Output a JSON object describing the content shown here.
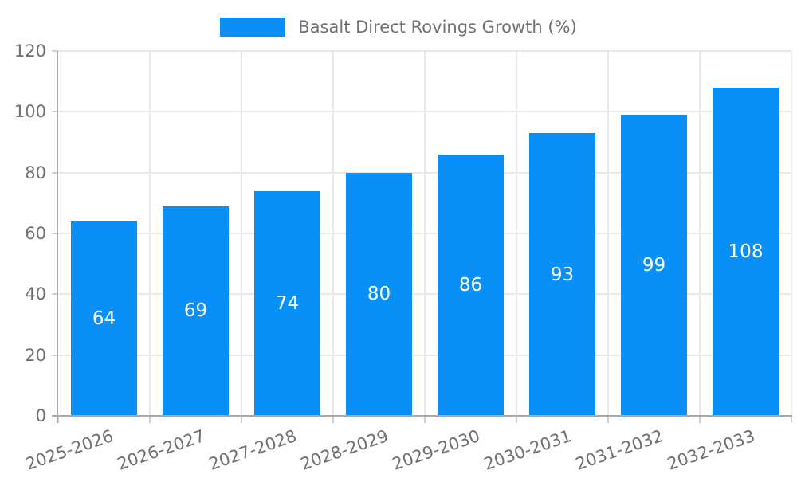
{
  "chart_data": {
    "type": "bar",
    "title": "Basalt Direct Rovings Growth (%)",
    "legend": [
      "Basalt Direct Rovings Growth (%)"
    ],
    "legend_position": "top-center",
    "categories": [
      "2025-2026",
      "2026-2027",
      "2027-2028",
      "2028-2029",
      "2029-2030",
      "2030-2031",
      "2031-2032",
      "2032-2033"
    ],
    "series": [
      {
        "name": "Basalt Direct Rovings Growth (%)",
        "values": [
          64,
          69,
          74,
          80,
          86,
          93,
          99,
          108
        ]
      }
    ],
    "values": [
      64,
      69,
      74,
      80,
      86,
      93,
      99,
      108
    ],
    "value_labels": [
      "64",
      "69",
      "74",
      "80",
      "86",
      "93",
      "99",
      "108"
    ],
    "xlabel": "",
    "ylabel": "",
    "ylim": [
      0,
      120
    ],
    "yticks": [
      0,
      20,
      40,
      60,
      80,
      100,
      120
    ],
    "grid": true,
    "colors": {
      "bar": "#0990f8",
      "value_label": "#ffffff",
      "axis_text": "#707070",
      "gridline": "#e9e9e9",
      "axis_line": "#a9a9a9",
      "tick": "#cfcfcf",
      "background": "#ffffff"
    }
  }
}
